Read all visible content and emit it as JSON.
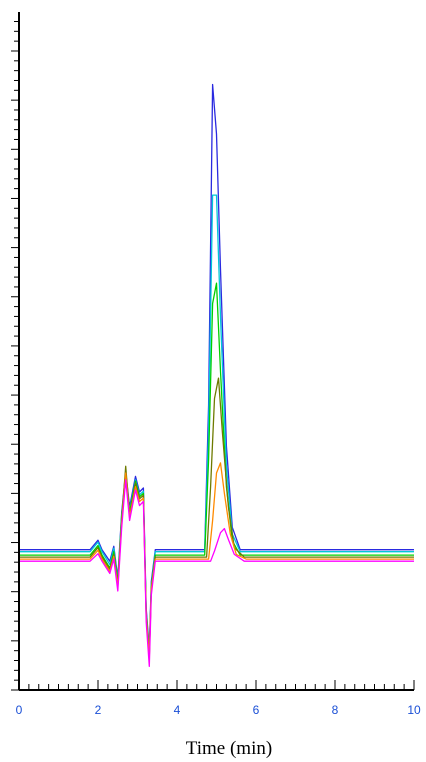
{
  "chart_data": {
    "type": "line",
    "title": "",
    "xlabel": "Time (min)",
    "ylabel": "",
    "xlim": [
      0,
      10
    ],
    "ylim": [
      0,
      1
    ],
    "x_ticks": [
      "0",
      "2",
      "4",
      "6",
      "8",
      "10"
    ],
    "x_minor_step": 0.25,
    "y_minor_step": 0.0145,
    "grid": false,
    "legend": "none",
    "colors": {
      "axis": "#000000",
      "tick_label": "#1a4fd6",
      "axis_title": "#000000"
    },
    "series": [
      {
        "color": "#2a2ae0",
        "points": [
          [
            0,
            0.207
          ],
          [
            1.8,
            0.207
          ],
          [
            2.0,
            0.221
          ],
          [
            2.1,
            0.207
          ],
          [
            2.3,
            0.19
          ],
          [
            2.4,
            0.212
          ],
          [
            2.5,
            0.165
          ],
          [
            2.6,
            0.262
          ],
          [
            2.7,
            0.322
          ],
          [
            2.8,
            0.27
          ],
          [
            2.95,
            0.315
          ],
          [
            3.05,
            0.292
          ],
          [
            3.15,
            0.298
          ],
          [
            3.22,
            0.12
          ],
          [
            3.3,
            0.06
          ],
          [
            3.35,
            0.16
          ],
          [
            3.45,
            0.207
          ],
          [
            4.7,
            0.207
          ],
          [
            4.8,
            0.42
          ],
          [
            4.9,
            0.893
          ],
          [
            5.0,
            0.82
          ],
          [
            5.1,
            0.62
          ],
          [
            5.25,
            0.36
          ],
          [
            5.4,
            0.24
          ],
          [
            5.6,
            0.207
          ],
          [
            10,
            0.207
          ]
        ]
      },
      {
        "color": "#00c8d8",
        "points": [
          [
            0,
            0.204
          ],
          [
            1.8,
            0.204
          ],
          [
            2.0,
            0.218
          ],
          [
            2.1,
            0.204
          ],
          [
            2.3,
            0.185
          ],
          [
            2.4,
            0.209
          ],
          [
            2.5,
            0.16
          ],
          [
            2.6,
            0.258
          ],
          [
            2.7,
            0.317
          ],
          [
            2.8,
            0.265
          ],
          [
            2.95,
            0.31
          ],
          [
            3.05,
            0.288
          ],
          [
            3.15,
            0.293
          ],
          [
            3.22,
            0.115
          ],
          [
            3.3,
            0.055
          ],
          [
            3.35,
            0.155
          ],
          [
            3.45,
            0.204
          ],
          [
            4.7,
            0.204
          ],
          [
            4.8,
            0.38
          ],
          [
            4.9,
            0.73
          ],
          [
            5.0,
            0.73
          ],
          [
            5.1,
            0.55
          ],
          [
            5.25,
            0.33
          ],
          [
            5.4,
            0.23
          ],
          [
            5.6,
            0.204
          ],
          [
            10,
            0.204
          ]
        ]
      },
      {
        "color": "#00d000",
        "points": [
          [
            0,
            0.199
          ],
          [
            1.8,
            0.199
          ],
          [
            2.0,
            0.213
          ],
          [
            2.1,
            0.199
          ],
          [
            2.3,
            0.18
          ],
          [
            2.4,
            0.204
          ],
          [
            2.5,
            0.158
          ],
          [
            2.6,
            0.255
          ],
          [
            2.7,
            0.315
          ],
          [
            2.8,
            0.262
          ],
          [
            2.95,
            0.308
          ],
          [
            3.05,
            0.285
          ],
          [
            3.15,
            0.29
          ],
          [
            3.22,
            0.112
          ],
          [
            3.3,
            0.052
          ],
          [
            3.35,
            0.152
          ],
          [
            3.45,
            0.199
          ],
          [
            4.7,
            0.199
          ],
          [
            4.8,
            0.34
          ],
          [
            4.9,
            0.57
          ],
          [
            5.0,
            0.6
          ],
          [
            5.1,
            0.47
          ],
          [
            5.25,
            0.3
          ],
          [
            5.4,
            0.22
          ],
          [
            5.6,
            0.199
          ],
          [
            10,
            0.199
          ]
        ]
      },
      {
        "color": "#6e7a00",
        "points": [
          [
            0,
            0.196
          ],
          [
            1.8,
            0.196
          ],
          [
            2.0,
            0.21
          ],
          [
            2.1,
            0.196
          ],
          [
            2.3,
            0.178
          ],
          [
            2.4,
            0.2
          ],
          [
            2.5,
            0.155
          ],
          [
            2.6,
            0.25
          ],
          [
            2.7,
            0.33
          ],
          [
            2.8,
            0.258
          ],
          [
            2.95,
            0.305
          ],
          [
            3.05,
            0.282
          ],
          [
            3.15,
            0.287
          ],
          [
            3.22,
            0.11
          ],
          [
            3.3,
            0.05
          ],
          [
            3.35,
            0.15
          ],
          [
            3.45,
            0.196
          ],
          [
            4.75,
            0.196
          ],
          [
            4.85,
            0.3
          ],
          [
            4.95,
            0.43
          ],
          [
            5.05,
            0.46
          ],
          [
            5.15,
            0.38
          ],
          [
            5.3,
            0.27
          ],
          [
            5.45,
            0.21
          ],
          [
            5.7,
            0.196
          ],
          [
            10,
            0.196
          ]
        ]
      },
      {
        "color": "#ff8a00",
        "points": [
          [
            0,
            0.193
          ],
          [
            1.8,
            0.193
          ],
          [
            2.0,
            0.206
          ],
          [
            2.1,
            0.193
          ],
          [
            2.3,
            0.175
          ],
          [
            2.4,
            0.197
          ],
          [
            2.5,
            0.152
          ],
          [
            2.6,
            0.246
          ],
          [
            2.7,
            0.32
          ],
          [
            2.8,
            0.255
          ],
          [
            2.95,
            0.3
          ],
          [
            3.05,
            0.278
          ],
          [
            3.15,
            0.283
          ],
          [
            3.22,
            0.108
          ],
          [
            3.3,
            0.048
          ],
          [
            3.35,
            0.148
          ],
          [
            3.45,
            0.193
          ],
          [
            4.8,
            0.193
          ],
          [
            4.9,
            0.25
          ],
          [
            5.0,
            0.32
          ],
          [
            5.1,
            0.335
          ],
          [
            5.2,
            0.29
          ],
          [
            5.35,
            0.23
          ],
          [
            5.5,
            0.2
          ],
          [
            5.75,
            0.193
          ],
          [
            10,
            0.193
          ]
        ]
      },
      {
        "color": "#ff00ff",
        "points": [
          [
            0,
            0.19
          ],
          [
            1.8,
            0.19
          ],
          [
            2.0,
            0.201
          ],
          [
            2.1,
            0.19
          ],
          [
            2.3,
            0.172
          ],
          [
            2.4,
            0.193
          ],
          [
            2.5,
            0.146
          ],
          [
            2.6,
            0.24
          ],
          [
            2.7,
            0.31
          ],
          [
            2.8,
            0.25
          ],
          [
            2.95,
            0.295
          ],
          [
            3.05,
            0.272
          ],
          [
            3.15,
            0.278
          ],
          [
            3.22,
            0.1
          ],
          [
            3.3,
            0.035
          ],
          [
            3.35,
            0.14
          ],
          [
            3.45,
            0.19
          ],
          [
            4.85,
            0.19
          ],
          [
            4.95,
            0.205
          ],
          [
            5.1,
            0.232
          ],
          [
            5.2,
            0.238
          ],
          [
            5.3,
            0.222
          ],
          [
            5.45,
            0.2
          ],
          [
            5.7,
            0.19
          ],
          [
            10,
            0.19
          ]
        ]
      }
    ]
  }
}
